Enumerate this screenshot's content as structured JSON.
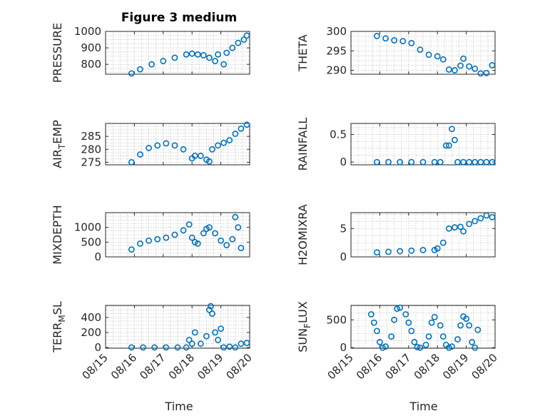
{
  "title": "Figure 3 medium",
  "xlabel": "Time",
  "x_tick_labels": [
    "08/15",
    "08/16",
    "08/17",
    "08/18",
    "08/19",
    "08/20"
  ],
  "colors": {
    "marker": "#0072bd",
    "axes": "#262626",
    "grid": "#b0b0b0"
  },
  "chart_data": [
    {
      "type": "scatter",
      "ylabel": "PRESSURE",
      "ylabel_sub": "",
      "ylim": [
        740,
        1000
      ],
      "yticks": [
        800,
        900,
        1000
      ],
      "grid": true,
      "x": [
        0.9,
        1.2,
        1.6,
        2.0,
        2.4,
        2.8,
        3.0,
        3.2,
        3.4,
        3.6,
        3.8,
        3.9,
        4.1,
        4.2,
        4.4,
        4.6,
        4.8,
        4.9
      ],
      "y": [
        745,
        770,
        800,
        820,
        840,
        860,
        865,
        860,
        855,
        840,
        820,
        860,
        800,
        870,
        900,
        930,
        950,
        975
      ]
    },
    {
      "type": "scatter",
      "ylabel": "THETA",
      "ylabel_sub": "",
      "ylim": [
        289,
        300
      ],
      "yticks": [
        290,
        295,
        300
      ],
      "grid": true,
      "x": [
        0.9,
        1.2,
        1.5,
        1.8,
        2.1,
        2.4,
        2.7,
        3.0,
        3.2,
        3.4,
        3.6,
        3.8,
        3.9,
        4.1,
        4.3,
        4.5,
        4.7,
        4.9
      ],
      "y": [
        298.8,
        298.2,
        297.7,
        297.5,
        297.0,
        295.3,
        294.0,
        293.6,
        292.8,
        290.2,
        290.0,
        291.2,
        293.0,
        291.0,
        290.4,
        289.2,
        289.3,
        291.3
      ]
    },
    {
      "type": "scatter",
      "ylabel": "AIR",
      "ylabel_sub": "T",
      "ylabel_after": "EMP",
      "ylim": [
        274,
        290
      ],
      "yticks": [
        275,
        280,
        285
      ],
      "grid": true,
      "x": [
        0.9,
        1.2,
        1.5,
        1.8,
        2.1,
        2.4,
        2.7,
        3.0,
        3.1,
        3.3,
        3.5,
        3.6,
        3.7,
        3.9,
        4.1,
        4.3,
        4.5,
        4.7,
        4.9
      ],
      "y": [
        275.0,
        278.0,
        280.5,
        281.5,
        282.3,
        281.5,
        280.0,
        276.5,
        277.5,
        277.5,
        276.0,
        275.3,
        280.0,
        281.5,
        282.5,
        283.5,
        286.0,
        288.0,
        289.5
      ]
    },
    {
      "type": "scatter",
      "ylabel": "RAINFALL",
      "ylabel_sub": "",
      "ylim": [
        -0.05,
        0.7
      ],
      "yticks": [
        0,
        0.5
      ],
      "grid": true,
      "x": [
        0.9,
        1.3,
        1.7,
        2.1,
        2.5,
        2.9,
        3.1,
        3.3,
        3.4,
        3.5,
        3.6,
        3.7,
        3.9,
        4.1,
        4.3,
        4.5,
        4.7,
        4.9
      ],
      "y": [
        0,
        0,
        0,
        0,
        0,
        0,
        0,
        0.3,
        0.3,
        0.6,
        0.4,
        0,
        0,
        0,
        0,
        0,
        0,
        0
      ]
    },
    {
      "type": "scatter",
      "ylabel": "MIXDEPTH",
      "ylabel_sub": "",
      "ylim": [
        0,
        1500
      ],
      "yticks": [
        0,
        500,
        1000
      ],
      "grid": true,
      "x": [
        0.9,
        1.2,
        1.5,
        1.8,
        2.1,
        2.4,
        2.7,
        2.9,
        3.0,
        3.1,
        3.2,
        3.4,
        3.5,
        3.6,
        3.8,
        4.0,
        4.2,
        4.4,
        4.5,
        4.6,
        4.7
      ],
      "y": [
        250,
        450,
        550,
        600,
        650,
        750,
        900,
        1100,
        650,
        500,
        450,
        800,
        950,
        1000,
        800,
        550,
        400,
        600,
        1350,
        1000,
        300
      ]
    },
    {
      "type": "scatter",
      "ylabel": "H2OMIXRA",
      "ylabel_sub": "",
      "ylim": [
        0,
        7.8
      ],
      "yticks": [
        0,
        5
      ],
      "grid": true,
      "x": [
        0.9,
        1.3,
        1.7,
        2.1,
        2.5,
        2.9,
        3.0,
        3.2,
        3.4,
        3.6,
        3.8,
        3.9,
        4.1,
        4.3,
        4.5,
        4.7,
        4.9
      ],
      "y": [
        0.8,
        0.9,
        1.0,
        1.1,
        1.2,
        1.2,
        1.5,
        2.5,
        5.0,
        5.2,
        5.3,
        4.5,
        5.8,
        6.3,
        6.8,
        7.3,
        7.0
      ]
    },
    {
      "type": "scatter",
      "ylabel": "TERR",
      "ylabel_sub": "M",
      "ylabel_after": "SL",
      "ylim": [
        -10,
        560
      ],
      "yticks": [
        0,
        200,
        400
      ],
      "grid": true,
      "x": [
        0.9,
        1.3,
        1.7,
        2.1,
        2.5,
        2.8,
        2.9,
        3.0,
        3.1,
        3.3,
        3.5,
        3.6,
        3.65,
        3.7,
        3.8,
        3.9,
        4.0,
        4.1,
        4.3,
        4.5,
        4.7,
        4.9
      ],
      "y": [
        0,
        0,
        0,
        0,
        0,
        0,
        100,
        50,
        200,
        50,
        150,
        500,
        550,
        450,
        200,
        100,
        250,
        0,
        10,
        0,
        50,
        60
      ]
    },
    {
      "type": "scatter",
      "ylabel": "SUN",
      "ylabel_sub": "F",
      "ylabel_after": "LUX",
      "ylim": [
        -10,
        760
      ],
      "yticks": [
        0,
        500
      ],
      "grid": true,
      "x": [
        0.7,
        0.8,
        0.9,
        1.0,
        1.1,
        1.2,
        1.4,
        1.5,
        1.6,
        1.7,
        1.9,
        2.0,
        2.1,
        2.2,
        2.3,
        2.4,
        2.6,
        2.7,
        2.8,
        2.9,
        3.1,
        3.2,
        3.3,
        3.4,
        3.5,
        3.7,
        3.8,
        3.9,
        4.0,
        4.1,
        4.2,
        4.3,
        4.4
      ],
      "y": [
        600,
        450,
        300,
        100,
        0,
        20,
        200,
        500,
        700,
        720,
        600,
        450,
        300,
        100,
        10,
        0,
        50,
        200,
        450,
        550,
        400,
        200,
        50,
        0,
        20,
        150,
        400,
        560,
        520,
        400,
        100,
        0,
        320
      ]
    }
  ]
}
